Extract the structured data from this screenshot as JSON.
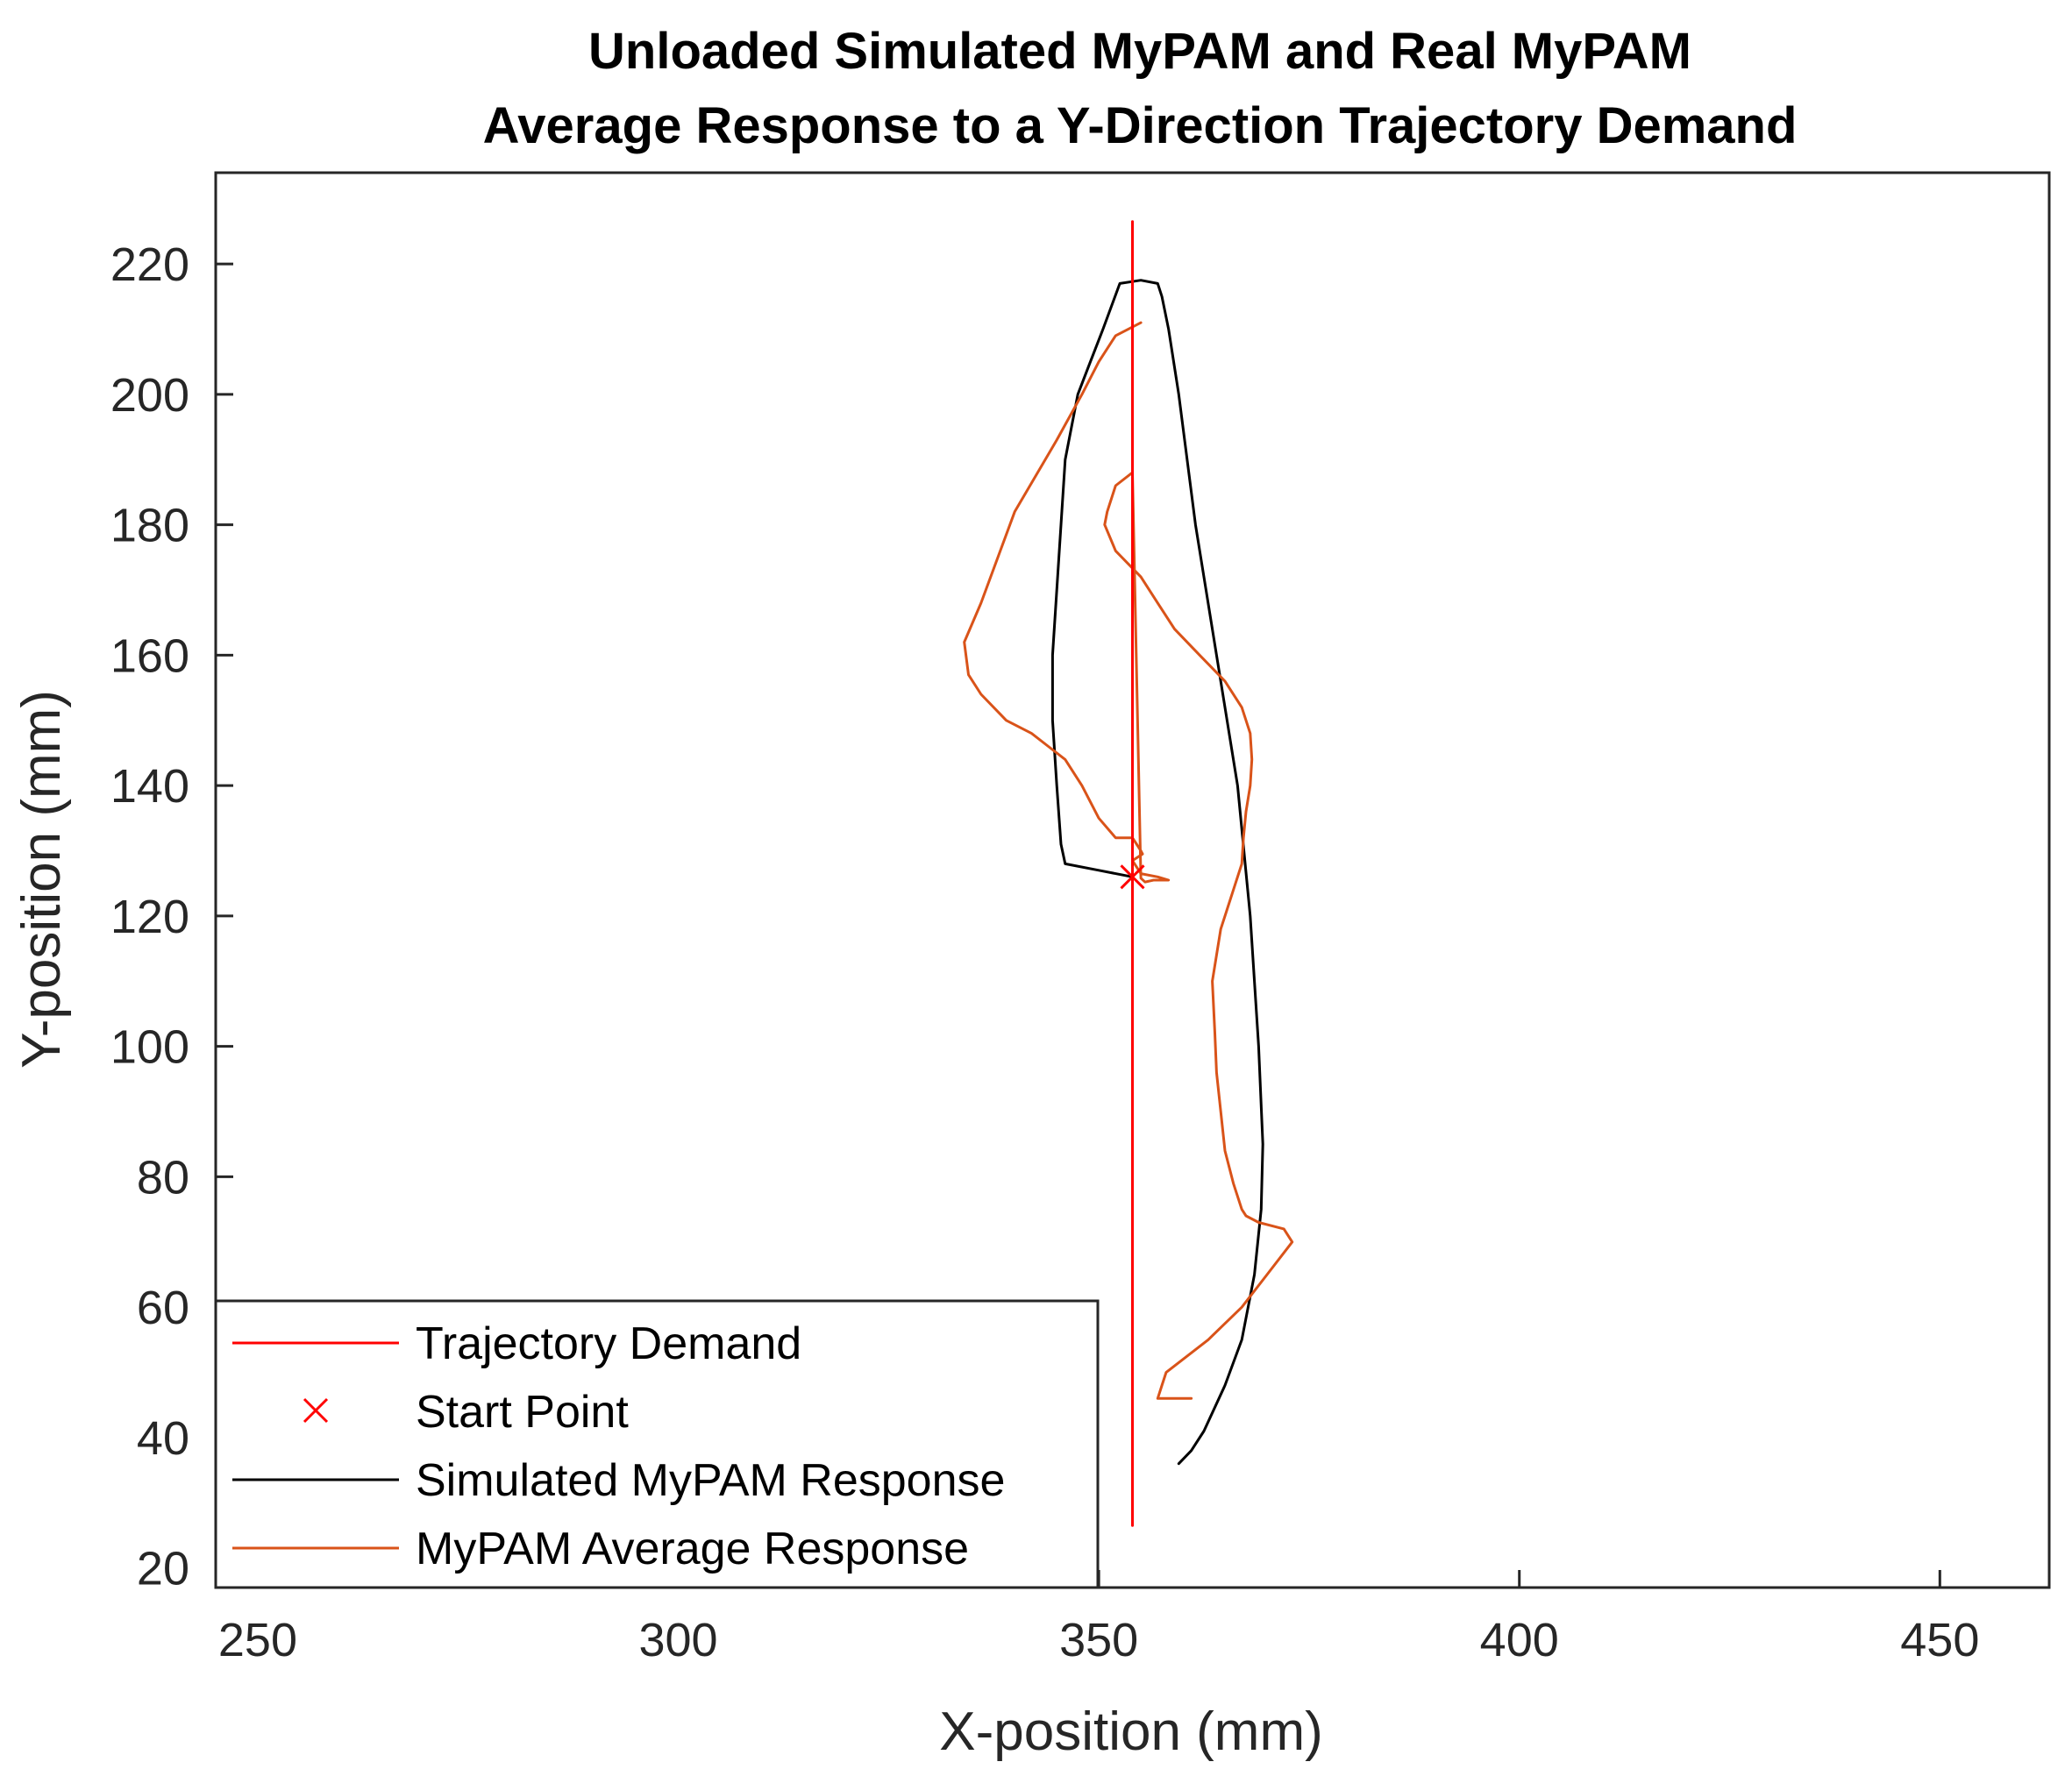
{
  "chart_data": {
    "type": "line",
    "title": [
      "Unloaded Simulated MyPAM and Real MyPAM",
      "Average Response to a Y-Direction Trajectory Demand"
    ],
    "xlabel": "X-position (mm)",
    "ylabel": "Y-position (mm)",
    "xlim": [
      245,
      463
    ],
    "ylim": [
      17,
      234
    ],
    "xticks": [
      250,
      300,
      350,
      400,
      450
    ],
    "yticks": [
      20,
      40,
      60,
      80,
      100,
      120,
      140,
      160,
      180,
      200,
      220
    ],
    "grid": false,
    "legend_position": "bottom-left",
    "series": [
      {
        "name": "Trajectory Demand",
        "kind": "line",
        "color": "#ff0000",
        "x": [
          354,
          354
        ],
        "y": [
          26.5,
          226.5
        ]
      },
      {
        "name": "Start Point",
        "kind": "marker",
        "marker": "x",
        "color": "#ff0000",
        "x": [
          354
        ],
        "y": [
          126
        ]
      },
      {
        "name": "Simulated MyPAM Response",
        "kind": "line",
        "color": "#000000",
        "x": [
          354,
          350,
          346,
          345.5,
          345,
          344.5,
          344.5,
          345,
          345.5,
          346,
          347.5,
          349,
          350.5,
          352.5,
          355,
          357,
          357.5,
          358.3,
          359.5,
          361.5,
          364,
          366.5,
          368,
          369,
          369.5,
          369.3,
          368.5,
          367,
          365,
          362.5,
          361,
          359.5
        ],
        "y": [
          126,
          127,
          128,
          131,
          140,
          150,
          160,
          170,
          180,
          190,
          200,
          205,
          210,
          217,
          217.5,
          217,
          215,
          210,
          200,
          180,
          160,
          140,
          120,
          100,
          85,
          75,
          65,
          55,
          48,
          41,
          38,
          36
        ]
      },
      {
        "name": "MyPAM Average Response",
        "kind": "line",
        "color": "#d95319",
        "x": [
          355,
          352,
          350,
          348,
          345,
          340,
          336,
          334,
          334.5,
          336,
          339,
          342,
          344,
          346,
          348,
          350,
          352,
          354,
          355,
          355.2,
          354,
          355,
          357,
          358.3,
          357.5,
          356.8,
          356.5,
          356.2,
          355.8,
          355.5,
          355,
          354,
          352,
          351,
          350.7,
          352,
          355,
          357,
          359,
          362,
          365,
          367,
          368,
          368.2,
          368,
          367.5,
          367.2,
          367,
          366,
          364.5,
          363.5,
          363.8,
          364,
          364.5,
          365,
          366,
          367,
          367.5,
          369,
          372,
          373,
          370,
          367,
          363,
          358,
          357.5,
          357,
          357.3,
          361
        ],
        "y": [
          211,
          209,
          205,
          200,
          193,
          182,
          168,
          162,
          157,
          154,
          150,
          148,
          146,
          144,
          140,
          135,
          132,
          132,
          130,
          129.5,
          128.5,
          126.5,
          126,
          125.5,
          125.5,
          125.5,
          125.5,
          125.4,
          125.3,
          125.2,
          125.8,
          188,
          186,
          182,
          180,
          176,
          172,
          168,
          164,
          160,
          156,
          152,
          148,
          144,
          140,
          136,
          132,
          128,
          124,
          118,
          110,
          102,
          96,
          90,
          84,
          79,
          75,
          74,
          73,
          72,
          70,
          65,
          60,
          55,
          50,
          48,
          46,
          46,
          46
        ]
      }
    ]
  }
}
